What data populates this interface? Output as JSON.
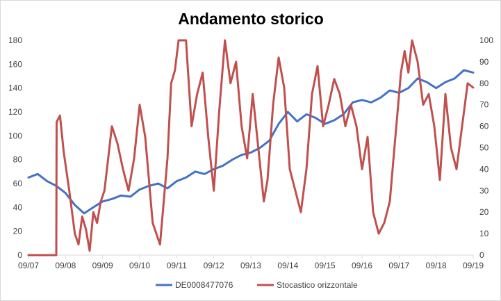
{
  "chart_data": {
    "type": "line",
    "title": "Andamento storico",
    "x_tick_labels": [
      "09/07",
      "09/08",
      "09/09",
      "09/10",
      "09/11",
      "09/12",
      "09/13",
      "09/14",
      "09/15",
      "09/16",
      "09/17",
      "09/18",
      "09/19"
    ],
    "y_left_ticks": [
      "0",
      "20",
      "40",
      "60",
      "80",
      "100",
      "120",
      "140",
      "160",
      "180"
    ],
    "y_right_ticks": [
      "0",
      "10",
      "20",
      "30",
      "40",
      "50",
      "60",
      "70",
      "80",
      "90",
      "100"
    ],
    "ylim_left": [
      0,
      180
    ],
    "ylim_right": [
      0,
      100
    ],
    "grid": false,
    "legend_position": "bottom",
    "series": [
      {
        "name": "DE0008477076",
        "axis": "left",
        "color": "#4472c4",
        "x": [
          2007.75,
          2008.0,
          2008.25,
          2008.5,
          2008.75,
          2009.0,
          2009.25,
          2009.5,
          2009.75,
          2010.0,
          2010.25,
          2010.5,
          2010.75,
          2011.0,
          2011.25,
          2011.5,
          2011.75,
          2012.0,
          2012.25,
          2012.5,
          2012.75,
          2013.0,
          2013.25,
          2013.5,
          2013.75,
          2014.0,
          2014.25,
          2014.5,
          2014.75,
          2015.0,
          2015.25,
          2015.5,
          2015.75,
          2016.0,
          2016.25,
          2016.5,
          2016.75,
          2017.0,
          2017.25,
          2017.5,
          2017.75,
          2018.0,
          2018.25,
          2018.5,
          2018.75,
          2019.0,
          2019.25,
          2019.5,
          2019.75
        ],
        "y": [
          65,
          68,
          62,
          58,
          52,
          42,
          35,
          40,
          45,
          47,
          50,
          49,
          55,
          58,
          60,
          56,
          62,
          65,
          70,
          68,
          72,
          75,
          80,
          84,
          86,
          90,
          96,
          110,
          120,
          112,
          118,
          115,
          110,
          113,
          118,
          128,
          130,
          128,
          132,
          138,
          136,
          140,
          148,
          145,
          140,
          145,
          148,
          155,
          153
        ]
      },
      {
        "name": "Stocastico orizzontale",
        "axis": "right",
        "color": "#c0504d",
        "x": [
          2007.75,
          2008.5,
          2008.51,
          2008.6,
          2008.7,
          2008.85,
          2009.0,
          2009.1,
          2009.2,
          2009.3,
          2009.4,
          2009.5,
          2009.6,
          2009.7,
          2009.8,
          2009.9,
          2010.0,
          2010.15,
          2010.3,
          2010.45,
          2010.6,
          2010.75,
          2010.9,
          2011.1,
          2011.3,
          2011.5,
          2011.6,
          2011.7,
          2011.8,
          2011.9,
          2012.0,
          2012.15,
          2012.3,
          2012.45,
          2012.6,
          2012.75,
          2012.9,
          2013.05,
          2013.2,
          2013.35,
          2013.5,
          2013.65,
          2013.8,
          2013.95,
          2014.1,
          2014.2,
          2014.35,
          2014.5,
          2014.65,
          2014.8,
          2014.95,
          2015.1,
          2015.25,
          2015.4,
          2015.55,
          2015.7,
          2015.85,
          2016.0,
          2016.15,
          2016.3,
          2016.45,
          2016.6,
          2016.75,
          2016.9,
          2017.05,
          2017.2,
          2017.35,
          2017.5,
          2017.6,
          2017.7,
          2017.8,
          2017.9,
          2018.0,
          2018.1,
          2018.25,
          2018.4,
          2018.55,
          2018.7,
          2018.85,
          2019.0,
          2019.15,
          2019.3,
          2019.45,
          2019.6,
          2019.75
        ],
        "y": [
          0,
          0,
          62,
          65,
          48,
          30,
          10,
          5,
          18,
          12,
          2,
          20,
          15,
          25,
          30,
          45,
          60,
          52,
          40,
          30,
          45,
          70,
          55,
          15,
          5,
          45,
          80,
          86,
          100,
          100,
          100,
          60,
          75,
          85,
          55,
          30,
          68,
          100,
          80,
          90,
          60,
          45,
          75,
          50,
          25,
          35,
          70,
          92,
          78,
          40,
          30,
          20,
          40,
          75,
          88,
          60,
          70,
          82,
          75,
          60,
          70,
          60,
          40,
          55,
          20,
          10,
          15,
          25,
          45,
          65,
          85,
          95,
          85,
          100,
          90,
          70,
          75,
          60,
          35,
          75,
          50,
          40,
          60,
          80,
          78
        ]
      }
    ]
  }
}
